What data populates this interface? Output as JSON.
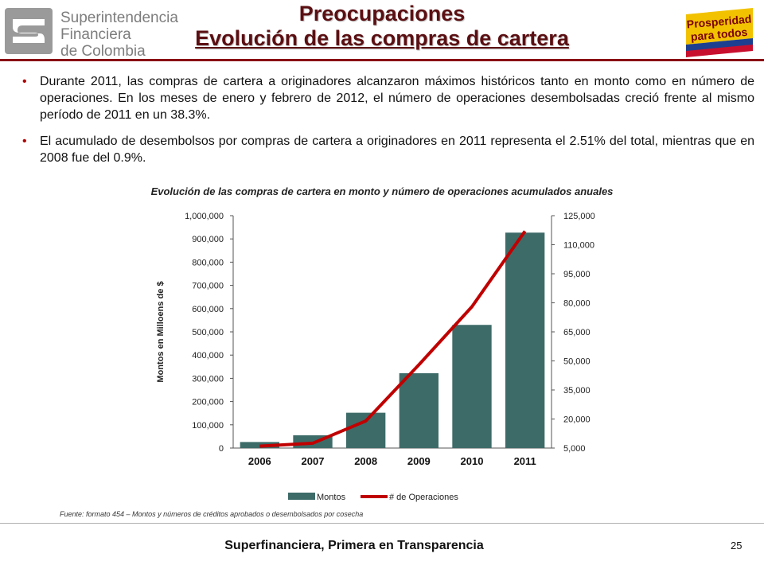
{
  "header": {
    "org_name_line1": "Superintendencia",
    "org_name_line2": "Financiera",
    "org_name_line3": "de Colombia",
    "title_line1": "Preocupaciones",
    "title_line2": "Evolución de las compras de cartera",
    "badge_line1": "Prosperidad",
    "badge_line2": "para todos"
  },
  "bullets": [
    {
      "text": "Durante 2011, las compras de cartera a originadores alcanzaron máximos históricos tanto en monto como en número de operaciones. En los meses de enero y febrero de 2012, el número de operaciones desembolsadas creció frente al mismo período de 2011 en un 38.3%."
    },
    {
      "text": "El acumulado de desembolsos por compras de cartera a originadores en 2011 representa el 2.51% del total, mientras que en 2008 fue del 0.9%."
    }
  ],
  "chart_data": {
    "type": "bar",
    "title": "Evolución de las compras de cartera en monto y número de operaciones  acumulados anuales",
    "categories": [
      "2006",
      "2007",
      "2008",
      "2009",
      "2010",
      "2011"
    ],
    "ylabel": "Montos en Milloens de $",
    "ylim": [
      0,
      1000000
    ],
    "y_ticks": [
      "0",
      "100,000",
      "200,000",
      "300,000",
      "400,000",
      "500,000",
      "600,000",
      "700,000",
      "800,000",
      "900,000",
      "1,000,000"
    ],
    "y2lim": [
      5000,
      125000
    ],
    "y2_ticks": [
      "5,000",
      "20,000",
      "35,000",
      "50,000",
      "65,000",
      "80,000",
      "95,000",
      "110,000",
      "125,000"
    ],
    "series": [
      {
        "name": "Montos",
        "type": "bar",
        "axis": "left",
        "color": "#3d6b68",
        "values": [
          26000,
          55000,
          152000,
          322000,
          530000,
          927000
        ]
      },
      {
        "name": "# de Operaciones",
        "type": "line",
        "axis": "right",
        "color": "#c00000",
        "values": [
          6000,
          7500,
          19000,
          48000,
          78000,
          117000
        ]
      }
    ],
    "legend_position": "bottom",
    "grid": false
  },
  "source_text": "Fuente: formato 454 – Montos y números de créditos aprobados o desembolsados por cosecha",
  "footer": {
    "text": "Superfinanciera, Primera en Transparencia",
    "page_number": "25"
  }
}
